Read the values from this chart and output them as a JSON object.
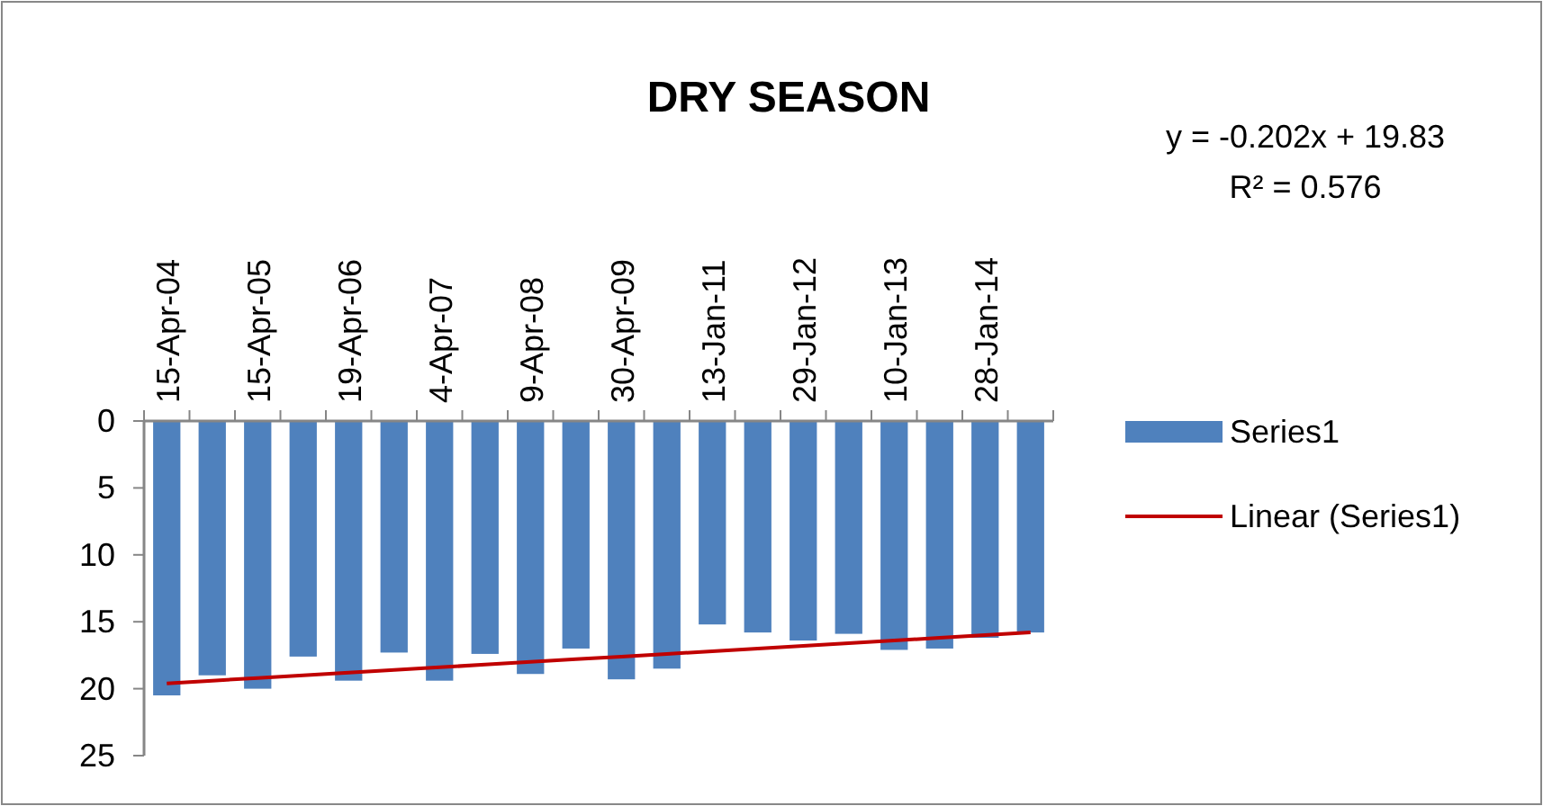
{
  "chart_data": {
    "type": "bar",
    "title": "DRY SEASON",
    "categories": [
      "15-Apr-04",
      null,
      "15-Apr-05",
      null,
      "19-Apr-06",
      null,
      "4-Apr-07",
      null,
      "9-Apr-08",
      null,
      "30-Apr-09",
      null,
      "13-Jan-11",
      null,
      "29-Jan-12",
      null,
      "10-Jan-13",
      null,
      "28-Jan-14",
      null
    ],
    "series": [
      {
        "name": "Series1",
        "color": "#4f81bd",
        "values": [
          20.5,
          19.0,
          20.0,
          17.6,
          19.4,
          17.3,
          19.4,
          17.4,
          18.9,
          17.0,
          19.3,
          18.5,
          15.2,
          15.8,
          16.4,
          15.9,
          17.1,
          17.0,
          16.2,
          15.8
        ]
      },
      {
        "name": "Linear (Series1)",
        "type": "line",
        "color": "#c00000",
        "values": [
          19.6,
          19.4,
          19.2,
          19.0,
          18.8,
          18.6,
          18.4,
          18.2,
          18.0,
          17.8,
          17.6,
          17.4,
          17.2,
          17.0,
          16.8,
          16.6,
          16.4,
          16.2,
          16.0,
          15.8
        ]
      }
    ],
    "ylim": [
      25,
      0
    ],
    "yticks": [
      0,
      5,
      10,
      15,
      20,
      25
    ],
    "grid": false,
    "legend": "right",
    "annotations": [
      "y = -0.202x + 19.83",
      "R² = 0.576"
    ]
  }
}
